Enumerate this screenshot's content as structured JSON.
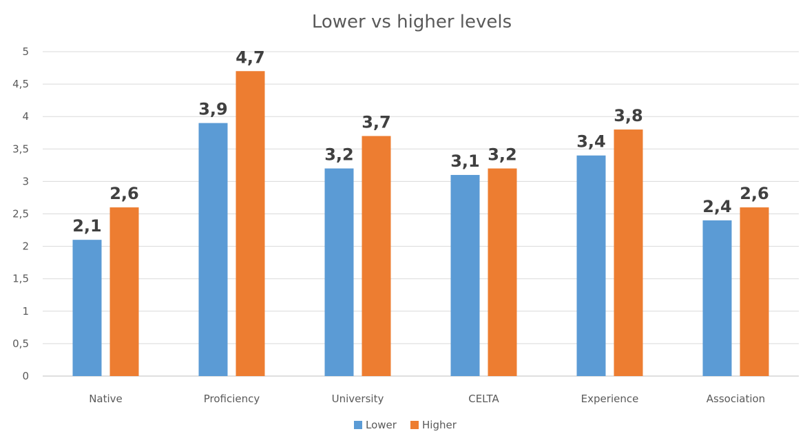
{
  "chart_data": {
    "type": "bar",
    "title": "Lower vs higher levels",
    "xlabel": "",
    "ylabel": "",
    "categories": [
      "Native",
      "Proficiency",
      "University",
      "CELTA",
      "Experience",
      "Association"
    ],
    "series": [
      {
        "name": "Lower",
        "color": "#5b9bd5",
        "values": [
          2.1,
          3.9,
          3.2,
          3.1,
          3.4,
          2.4
        ],
        "labels": [
          "2,1",
          "3,9",
          "3,2",
          "3,1",
          "3,4",
          "2,4"
        ]
      },
      {
        "name": "Higher",
        "color": "#ed7d31",
        "values": [
          2.6,
          4.7,
          3.7,
          3.2,
          3.8,
          2.6
        ],
        "labels": [
          "2,6",
          "4,7",
          "3,7",
          "3,2",
          "3,8",
          "2,6"
        ]
      }
    ],
    "ylim": [
      0,
      5
    ],
    "yticks": [
      0,
      0.5,
      1,
      1.5,
      2,
      2.5,
      3,
      3.5,
      4,
      4.5,
      5
    ],
    "ytick_labels": [
      "0",
      "0,5",
      "1",
      "1,5",
      "2",
      "2,5",
      "3",
      "3,5",
      "4",
      "4,5",
      "5"
    ],
    "grid": true,
    "legend_position": "bottom"
  }
}
